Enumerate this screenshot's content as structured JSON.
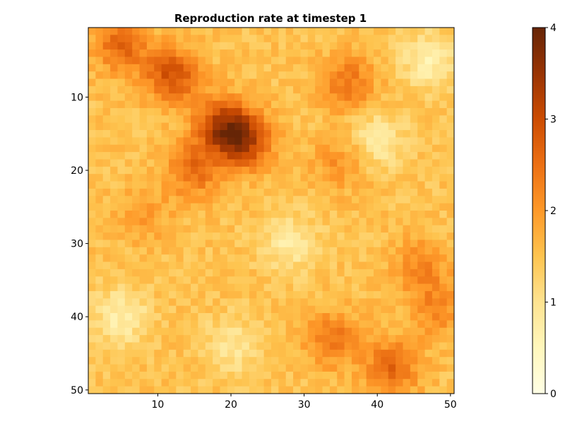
{
  "chart_data": {
    "type": "heatmap",
    "title": "Reproduction rate at timestep 1",
    "xlabel": "",
    "ylabel": "",
    "xlim": [
      1,
      50
    ],
    "ylim": [
      1,
      50
    ],
    "y_reversed": true,
    "x_ticks": [
      10,
      20,
      30,
      40,
      50
    ],
    "y_ticks": [
      10,
      20,
      30,
      40,
      50
    ],
    "colorbar": {
      "colormap": "YlOrBr",
      "min": 0,
      "max": 4,
      "ticks": [
        0,
        1,
        2,
        3,
        4
      ],
      "colors": [
        "#ffffe5",
        "#fff7bc",
        "#fee391",
        "#fec44f",
        "#fe9929",
        "#ec7014",
        "#cc4c02",
        "#993404",
        "#662506"
      ]
    },
    "grid": false,
    "field_summary": {
      "background": 1.5,
      "hotspots": [
        {
          "x": 19,
          "y": 14,
          "value": 3.2
        },
        {
          "x": 22,
          "y": 16,
          "value": 3.0
        },
        {
          "x": 12,
          "y": 7,
          "value": 2.9
        },
        {
          "x": 5,
          "y": 3,
          "value": 2.6
        },
        {
          "x": 36,
          "y": 8,
          "value": 2.4
        },
        {
          "x": 15,
          "y": 20,
          "value": 2.5
        },
        {
          "x": 42,
          "y": 47,
          "value": 2.6
        },
        {
          "x": 34,
          "y": 43,
          "value": 2.4
        },
        {
          "x": 46,
          "y": 33,
          "value": 2.2
        },
        {
          "x": 48,
          "y": 39,
          "value": 2.2
        },
        {
          "x": 35,
          "y": 19,
          "value": 2.1
        },
        {
          "x": 8,
          "y": 26,
          "value": 2.0
        }
      ],
      "coldspots": [
        {
          "x": 5,
          "y": 40,
          "value": 0.7
        },
        {
          "x": 40,
          "y": 16,
          "value": 0.8
        },
        {
          "x": 28,
          "y": 30,
          "value": 0.8
        },
        {
          "x": 47,
          "y": 5,
          "value": 0.7
        },
        {
          "x": 20,
          "y": 44,
          "value": 0.9
        }
      ]
    }
  }
}
